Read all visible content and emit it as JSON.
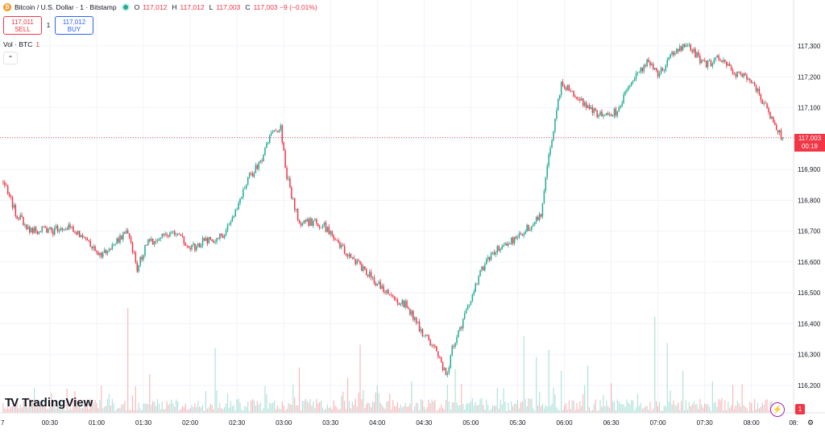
{
  "symbol": {
    "title": "Bitcoin / U.S. Dollar · 1 · Bitstamp",
    "coin_glyph": "₿",
    "o_label": "O",
    "o_value": "117,012",
    "h_label": "H",
    "h_value": "117,012",
    "l_label": "L",
    "l_value": "117,003",
    "c_label": "C",
    "c_value": "117,003 −9 (−0.01%)"
  },
  "trade": {
    "sell_price": "117,011",
    "sell_label": "SELL",
    "spread": "1",
    "buy_price": "117,012",
    "buy_label": "BUY"
  },
  "volume_legend": {
    "label": "Vol · BTC",
    "value": "1"
  },
  "price_tag": {
    "price": "117,003",
    "countdown": "00:19"
  },
  "brand": {
    "logo_mark": "TV",
    "name": "TradingView"
  },
  "badges": {
    "alert_count": "1"
  },
  "colors": {
    "up": "#22ab94",
    "down": "#f23645",
    "grid": "#f0f3fa",
    "text": "#131722"
  },
  "icons": [
    "bitcoin-icon",
    "market-status-icon",
    "collapse-chevron-icon",
    "flash-icon",
    "settings-icon"
  ],
  "chart_data": {
    "type": "candlestick",
    "title": "Bitcoin / U.S. Dollar · 1 · Bitstamp",
    "y_ticks": [
      "116,200",
      "116,300",
      "116,400",
      "116,500",
      "116,600",
      "116,700",
      "116,800",
      "116,900",
      "117,000",
      "117,100",
      "117,200",
      "117,300"
    ],
    "y_values": [
      116200,
      116300,
      116400,
      116500,
      116600,
      116700,
      116800,
      116900,
      117000,
      117100,
      117200,
      117300
    ],
    "ylim": [
      116150,
      117400
    ],
    "x_ticks": [
      "7",
      "00:30",
      "01:00",
      "01:30",
      "02:00",
      "02:30",
      "03:00",
      "03:30",
      "04:00",
      "04:30",
      "05:00",
      "05:30",
      "06:00",
      "06:30",
      "07:00",
      "07:30",
      "08:00",
      "08:"
    ],
    "x_tick_minutes": [
      -3,
      30,
      60,
      90,
      120,
      150,
      180,
      210,
      240,
      270,
      300,
      330,
      360,
      390,
      420,
      450,
      480,
      507
    ],
    "last_price": 117003,
    "grid": true,
    "path_knots": [
      [
        0,
        116860
      ],
      [
        8,
        116760
      ],
      [
        16,
        116710
      ],
      [
        28,
        116700
      ],
      [
        45,
        116710
      ],
      [
        55,
        116660
      ],
      [
        62,
        116620
      ],
      [
        70,
        116650
      ],
      [
        80,
        116700
      ],
      [
        86,
        116580
      ],
      [
        92,
        116660
      ],
      [
        100,
        116680
      ],
      [
        110,
        116700
      ],
      [
        120,
        116640
      ],
      [
        130,
        116670
      ],
      [
        140,
        116680
      ],
      [
        150,
        116780
      ],
      [
        157,
        116870
      ],
      [
        165,
        116920
      ],
      [
        173,
        117030
      ],
      [
        178,
        117030
      ],
      [
        182,
        116880
      ],
      [
        190,
        116720
      ],
      [
        198,
        116730
      ],
      [
        205,
        116720
      ],
      [
        214,
        116670
      ],
      [
        222,
        116620
      ],
      [
        230,
        116580
      ],
      [
        238,
        116540
      ],
      [
        248,
        116490
      ],
      [
        258,
        116460
      ],
      [
        268,
        116380
      ],
      [
        276,
        116330
      ],
      [
        285,
        116230
      ],
      [
        288,
        116320
      ],
      [
        298,
        116450
      ],
      [
        306,
        116570
      ],
      [
        318,
        116650
      ],
      [
        330,
        116680
      ],
      [
        345,
        116750
      ],
      [
        350,
        116950
      ],
      [
        358,
        117180
      ],
      [
        366,
        117150
      ],
      [
        375,
        117100
      ],
      [
        384,
        117070
      ],
      [
        395,
        117090
      ],
      [
        402,
        117180
      ],
      [
        414,
        117250
      ],
      [
        420,
        117200
      ],
      [
        430,
        117280
      ],
      [
        440,
        117300
      ],
      [
        450,
        117240
      ],
      [
        460,
        117260
      ],
      [
        470,
        117210
      ],
      [
        480,
        117190
      ],
      [
        488,
        117110
      ],
      [
        496,
        117040
      ],
      [
        500,
        117003
      ]
    ],
    "volume_spikes": [
      [
        80,
        120
      ],
      [
        94,
        44
      ],
      [
        136,
        74
      ],
      [
        190,
        52
      ],
      [
        221,
        40
      ],
      [
        229,
        78
      ],
      [
        262,
        36
      ],
      [
        290,
        50
      ],
      [
        334,
        88
      ],
      [
        342,
        64
      ],
      [
        350,
        72
      ],
      [
        358,
        48
      ],
      [
        375,
        54
      ],
      [
        418,
        110
      ],
      [
        426,
        80
      ],
      [
        436,
        48
      ],
      [
        455,
        36
      ],
      [
        468,
        32
      ]
    ],
    "volume_max": 120
  }
}
